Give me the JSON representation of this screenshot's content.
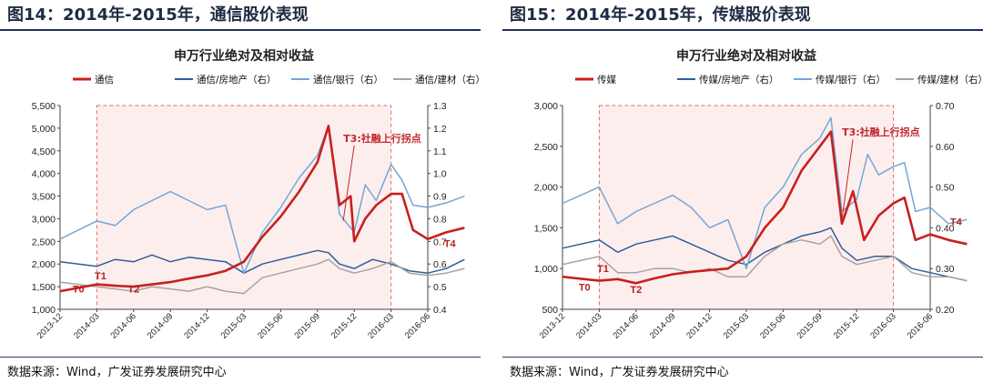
{
  "colors": {
    "main": "#c8201e",
    "realestate": "#2f5e9a",
    "bank": "#74a6d6",
    "material": "#a9a2a2",
    "box_fill": "#fdeeee",
    "box_border": "#e36b6b"
  },
  "chart_data": [
    {
      "type": "line",
      "figure_title": "图14：2014年-2015年，通信股价表现",
      "title": "申万行业绝对及相对收益",
      "source": "数据来源：Wind，广发证券发展研究中心",
      "x_ticks": [
        "2013-12",
        "2014-03",
        "2014-06",
        "2014-09",
        "2014-12",
        "2015-03",
        "2015-06",
        "2015-09",
        "2015-12",
        "2016-03",
        "2016-06"
      ],
      "y_left": {
        "min": 1000,
        "max": 5500,
        "ticks": [
          "1,000",
          "1,500",
          "2,000",
          "2,500",
          "3,000",
          "3,500",
          "4,000",
          "4,500",
          "5,000",
          "5,500"
        ]
      },
      "y_right": {
        "min": 0.4,
        "max": 1.3,
        "ticks": [
          "0.4",
          "0.5",
          "0.6",
          "0.7",
          "0.8",
          "0.9",
          "1.0",
          "1.1",
          "1.2",
          "1.3"
        ]
      },
      "highlight_period": [
        "2014-03",
        "2016-03"
      ],
      "series": [
        {
          "name": "通信",
          "axis": "left",
          "color_key": "main",
          "points": [
            [
              0,
              1400
            ],
            [
              1,
              1550
            ],
            [
              1.5,
              1520
            ],
            [
              2,
              1500
            ],
            [
              2.5,
              1550
            ],
            [
              3,
              1600
            ],
            [
              3.5,
              1680
            ],
            [
              4,
              1750
            ],
            [
              4.5,
              1850
            ],
            [
              5,
              2050
            ],
            [
              5.5,
              2600
            ],
            [
              6,
              3050
            ],
            [
              6.5,
              3600
            ],
            [
              7,
              4250
            ],
            [
              7.3,
              5050
            ],
            [
              7.6,
              3300
            ],
            [
              7.9,
              3500
            ],
            [
              8,
              2500
            ],
            [
              8.3,
              3000
            ],
            [
              8.6,
              3300
            ],
            [
              9,
              3550
            ],
            [
              9.3,
              3550
            ],
            [
              9.6,
              2750
            ],
            [
              10,
              2550
            ],
            [
              10.5,
              2700
            ],
            [
              11,
              2800
            ]
          ]
        },
        {
          "name": "通信/房地产（右）",
          "axis": "right",
          "color_key": "realestate",
          "points": [
            [
              0,
              0.61
            ],
            [
              1,
              0.59
            ],
            [
              1.5,
              0.62
            ],
            [
              2,
              0.61
            ],
            [
              2.5,
              0.64
            ],
            [
              3,
              0.61
            ],
            [
              3.5,
              0.63
            ],
            [
              4,
              0.62
            ],
            [
              4.5,
              0.61
            ],
            [
              5,
              0.56
            ],
            [
              5.5,
              0.6
            ],
            [
              6,
              0.62
            ],
            [
              6.5,
              0.64
            ],
            [
              7,
              0.66
            ],
            [
              7.3,
              0.65
            ],
            [
              7.6,
              0.6
            ],
            [
              8,
              0.58
            ],
            [
              8.5,
              0.62
            ],
            [
              9,
              0.6
            ],
            [
              9.5,
              0.57
            ],
            [
              10,
              0.56
            ],
            [
              10.5,
              0.58
            ],
            [
              11,
              0.62
            ]
          ]
        },
        {
          "name": "通信/银行（右）",
          "axis": "right",
          "color_key": "bank",
          "points": [
            [
              0,
              0.71
            ],
            [
              1,
              0.79
            ],
            [
              1.5,
              0.77
            ],
            [
              2,
              0.84
            ],
            [
              2.5,
              0.88
            ],
            [
              3,
              0.92
            ],
            [
              3.5,
              0.88
            ],
            [
              4,
              0.84
            ],
            [
              4.5,
              0.86
            ],
            [
              5,
              0.56
            ],
            [
              5.5,
              0.74
            ],
            [
              6,
              0.85
            ],
            [
              6.5,
              0.98
            ],
            [
              7,
              1.08
            ],
            [
              7.3,
              1.21
            ],
            [
              7.6,
              0.82
            ],
            [
              8,
              0.74
            ],
            [
              8.3,
              0.95
            ],
            [
              8.6,
              0.88
            ],
            [
              9,
              1.04
            ],
            [
              9.3,
              0.97
            ],
            [
              9.6,
              0.86
            ],
            [
              10,
              0.85
            ],
            [
              10.5,
              0.87
            ],
            [
              11,
              0.9
            ]
          ]
        },
        {
          "name": "通信/建材（右）",
          "axis": "right",
          "color_key": "material",
          "points": [
            [
              0,
              0.52
            ],
            [
              1,
              0.5
            ],
            [
              1.5,
              0.49
            ],
            [
              2,
              0.48
            ],
            [
              2.5,
              0.5
            ],
            [
              3,
              0.49
            ],
            [
              3.5,
              0.48
            ],
            [
              4,
              0.5
            ],
            [
              4.5,
              0.48
            ],
            [
              5,
              0.47
            ],
            [
              5.5,
              0.54
            ],
            [
              6,
              0.56
            ],
            [
              6.5,
              0.58
            ],
            [
              7,
              0.6
            ],
            [
              7.3,
              0.62
            ],
            [
              7.6,
              0.58
            ],
            [
              8,
              0.56
            ],
            [
              8.5,
              0.58
            ],
            [
              9,
              0.61
            ],
            [
              9.5,
              0.56
            ],
            [
              10,
              0.55
            ],
            [
              10.5,
              0.56
            ],
            [
              11,
              0.58
            ]
          ]
        }
      ],
      "annotations": [
        {
          "text": "T0",
          "x": 0.5,
          "axis": "left",
          "y": 1370
        },
        {
          "text": "T1",
          "x": 1.1,
          "axis": "left",
          "y": 1660
        },
        {
          "text": "T2",
          "x": 2.0,
          "axis": "left",
          "y": 1370
        },
        {
          "text": "T3:社融上行拐点",
          "x": 7.9,
          "axis": "left",
          "y": 4700,
          "arrow_to": [
            7.7,
            2950
          ]
        },
        {
          "text": "T4",
          "x": 10.6,
          "axis": "left",
          "y": 2380
        }
      ]
    },
    {
      "type": "line",
      "figure_title": "图15：2014年-2015年，传媒股价表现",
      "title": "申万行业绝对及相对收益",
      "source": "数据来源：Wind，广发证券发展研究中心",
      "x_ticks": [
        "2013-12",
        "2014-03",
        "2014-06",
        "2014-09",
        "2014-12",
        "2015-03",
        "2015-06",
        "2015-09",
        "2015-12",
        "2016-03",
        "2016-06"
      ],
      "y_left": {
        "min": 500,
        "max": 3000,
        "ticks": [
          "500",
          "1,000",
          "1,500",
          "2,000",
          "2,500",
          "3,000"
        ]
      },
      "y_right": {
        "min": 0.2,
        "max": 0.7,
        "ticks": [
          "0.20",
          "0.30",
          "0.40",
          "0.50",
          "0.60",
          "0.70"
        ]
      },
      "highlight_period": [
        "2014-03",
        "2016-03"
      ],
      "series": [
        {
          "name": "传媒",
          "axis": "left",
          "color_key": "main",
          "points": [
            [
              0,
              900
            ],
            [
              1,
              850
            ],
            [
              1.5,
              870
            ],
            [
              2,
              820
            ],
            [
              2.5,
              880
            ],
            [
              3,
              930
            ],
            [
              3.5,
              960
            ],
            [
              4,
              980
            ],
            [
              4.5,
              1000
            ],
            [
              5,
              1150
            ],
            [
              5.5,
              1500
            ],
            [
              6,
              1750
            ],
            [
              6.5,
              2200
            ],
            [
              7,
              2500
            ],
            [
              7.3,
              2680
            ],
            [
              7.6,
              1550
            ],
            [
              7.9,
              1950
            ],
            [
              8.2,
              1350
            ],
            [
              8.6,
              1650
            ],
            [
              9,
              1800
            ],
            [
              9.3,
              1870
            ],
            [
              9.6,
              1350
            ],
            [
              10,
              1420
            ],
            [
              10.5,
              1350
            ],
            [
              11,
              1300
            ]
          ]
        },
        {
          "name": "传媒/房地产（右）",
          "axis": "right",
          "color_key": "realestate",
          "points": [
            [
              0,
              0.35
            ],
            [
              1,
              0.37
            ],
            [
              1.5,
              0.34
            ],
            [
              2,
              0.36
            ],
            [
              2.5,
              0.37
            ],
            [
              3,
              0.38
            ],
            [
              3.5,
              0.36
            ],
            [
              4,
              0.34
            ],
            [
              4.5,
              0.32
            ],
            [
              5,
              0.31
            ],
            [
              5.5,
              0.34
            ],
            [
              6,
              0.36
            ],
            [
              6.5,
              0.38
            ],
            [
              7,
              0.39
            ],
            [
              7.3,
              0.4
            ],
            [
              7.6,
              0.35
            ],
            [
              8,
              0.32
            ],
            [
              8.5,
              0.33
            ],
            [
              9,
              0.33
            ],
            [
              9.5,
              0.3
            ],
            [
              10,
              0.29
            ],
            [
              10.5,
              0.28
            ],
            [
              11,
              0.27
            ]
          ]
        },
        {
          "name": "传媒/银行（右）",
          "axis": "right",
          "color_key": "bank",
          "points": [
            [
              0,
              0.46
            ],
            [
              1,
              0.5
            ],
            [
              1.5,
              0.41
            ],
            [
              2,
              0.44
            ],
            [
              2.5,
              0.46
            ],
            [
              3,
              0.48
            ],
            [
              3.5,
              0.45
            ],
            [
              4,
              0.4
            ],
            [
              4.5,
              0.42
            ],
            [
              5,
              0.3
            ],
            [
              5.5,
              0.45
            ],
            [
              6,
              0.5
            ],
            [
              6.5,
              0.58
            ],
            [
              7,
              0.62
            ],
            [
              7.3,
              0.67
            ],
            [
              7.6,
              0.44
            ],
            [
              8,
              0.47
            ],
            [
              8.3,
              0.58
            ],
            [
              8.6,
              0.53
            ],
            [
              9,
              0.55
            ],
            [
              9.3,
              0.56
            ],
            [
              9.6,
              0.44
            ],
            [
              10,
              0.45
            ],
            [
              10.5,
              0.41
            ],
            [
              11,
              0.42
            ]
          ]
        },
        {
          "name": "传媒/建材（右）",
          "axis": "right",
          "color_key": "material",
          "points": [
            [
              0,
              0.31
            ],
            [
              1,
              0.33
            ],
            [
              1.5,
              0.29
            ],
            [
              2,
              0.29
            ],
            [
              2.5,
              0.3
            ],
            [
              3,
              0.3
            ],
            [
              3.5,
              0.29
            ],
            [
              4,
              0.3
            ],
            [
              4.5,
              0.28
            ],
            [
              5,
              0.28
            ],
            [
              5.5,
              0.33
            ],
            [
              6,
              0.36
            ],
            [
              6.5,
              0.37
            ],
            [
              7,
              0.36
            ],
            [
              7.3,
              0.38
            ],
            [
              7.6,
              0.33
            ],
            [
              8,
              0.31
            ],
            [
              8.5,
              0.32
            ],
            [
              9,
              0.33
            ],
            [
              9.5,
              0.29
            ],
            [
              10,
              0.28
            ],
            [
              10.5,
              0.28
            ],
            [
              11,
              0.27
            ]
          ]
        }
      ],
      "annotations": [
        {
          "text": "T0",
          "x": 0.6,
          "axis": "left",
          "y": 730
        },
        {
          "text": "T1",
          "x": 1.1,
          "axis": "left",
          "y": 960
        },
        {
          "text": "T2",
          "x": 2.0,
          "axis": "left",
          "y": 700
        },
        {
          "text": "T3:社融上行拐点",
          "x": 7.8,
          "axis": "left",
          "y": 2630,
          "arrow_to": [
            7.6,
            1600
          ]
        },
        {
          "text": "T4",
          "x": 10.7,
          "axis": "left",
          "y": 1530
        }
      ]
    }
  ]
}
